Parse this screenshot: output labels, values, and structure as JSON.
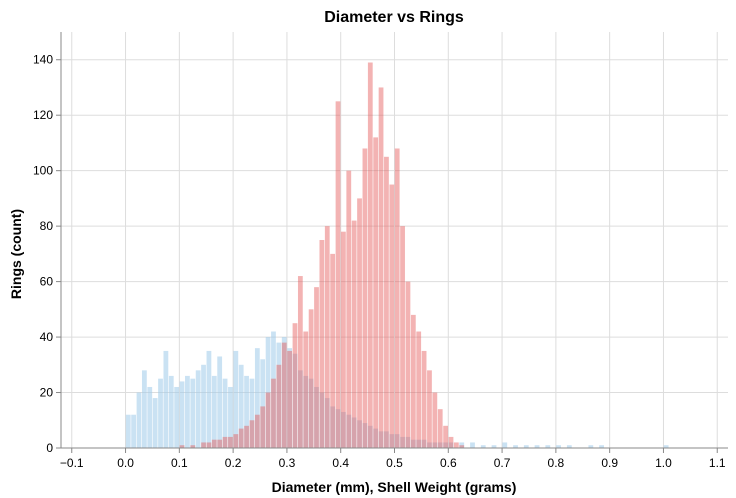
{
  "chart_data": {
    "type": "histogram",
    "title": "Diameter vs Rings",
    "xlabel": "Diameter (mm), Shell Weight (grams)",
    "ylabel": "Rings (count)",
    "xlim": [
      -0.12,
      1.12
    ],
    "ylim": [
      0,
      150
    ],
    "x_ticks": [
      "−0.1",
      "0.0",
      "0.1",
      "0.2",
      "0.3",
      "0.4",
      "0.5",
      "0.6",
      "0.7",
      "0.8",
      "0.9",
      "1.0",
      "1.1"
    ],
    "y_ticks": [
      "0",
      "20",
      "40",
      "60",
      "80",
      "100",
      "120",
      "140"
    ],
    "grid": true,
    "legend": "none",
    "series": [
      {
        "name": "",
        "color": "#9ecae9",
        "bin_width": 0.01,
        "bins": [
          [
            0.0,
            12
          ],
          [
            0.01,
            12
          ],
          [
            0.02,
            20
          ],
          [
            0.03,
            28
          ],
          [
            0.04,
            22
          ],
          [
            0.05,
            18
          ],
          [
            0.06,
            25
          ],
          [
            0.07,
            35
          ],
          [
            0.08,
            26
          ],
          [
            0.09,
            22
          ],
          [
            0.1,
            24
          ],
          [
            0.11,
            26
          ],
          [
            0.12,
            25
          ],
          [
            0.13,
            28
          ],
          [
            0.14,
            30
          ],
          [
            0.15,
            35
          ],
          [
            0.16,
            26
          ],
          [
            0.17,
            33
          ],
          [
            0.18,
            25
          ],
          [
            0.19,
            22
          ],
          [
            0.2,
            35
          ],
          [
            0.21,
            30
          ],
          [
            0.22,
            26
          ],
          [
            0.23,
            25
          ],
          [
            0.24,
            36
          ],
          [
            0.25,
            32
          ],
          [
            0.26,
            40
          ],
          [
            0.27,
            42
          ],
          [
            0.28,
            38
          ],
          [
            0.29,
            40
          ],
          [
            0.3,
            36
          ],
          [
            0.31,
            34
          ],
          [
            0.32,
            28
          ],
          [
            0.33,
            26
          ],
          [
            0.34,
            25
          ],
          [
            0.35,
            22
          ],
          [
            0.36,
            20
          ],
          [
            0.37,
            18
          ],
          [
            0.38,
            15
          ],
          [
            0.39,
            14
          ],
          [
            0.4,
            13
          ],
          [
            0.41,
            12
          ],
          [
            0.42,
            11
          ],
          [
            0.43,
            10
          ],
          [
            0.44,
            9
          ],
          [
            0.45,
            8
          ],
          [
            0.46,
            7
          ],
          [
            0.47,
            6
          ],
          [
            0.48,
            6
          ],
          [
            0.49,
            5
          ],
          [
            0.5,
            5
          ],
          [
            0.51,
            4
          ],
          [
            0.52,
            4
          ],
          [
            0.53,
            3
          ],
          [
            0.54,
            3
          ],
          [
            0.55,
            3
          ],
          [
            0.56,
            2
          ],
          [
            0.57,
            2
          ],
          [
            0.58,
            2
          ],
          [
            0.59,
            2
          ],
          [
            0.6,
            2
          ],
          [
            0.62,
            2
          ],
          [
            0.64,
            2
          ],
          [
            0.66,
            1
          ],
          [
            0.68,
            1
          ],
          [
            0.7,
            2
          ],
          [
            0.72,
            1
          ],
          [
            0.74,
            1
          ],
          [
            0.76,
            1
          ],
          [
            0.78,
            1
          ],
          [
            0.8,
            1
          ],
          [
            0.82,
            1
          ],
          [
            0.86,
            1
          ],
          [
            0.88,
            1
          ],
          [
            1.0,
            1
          ]
        ]
      },
      {
        "name": "",
        "color": "#e45756",
        "bin_width": 0.01,
        "bins": [
          [
            0.1,
            1
          ],
          [
            0.12,
            1
          ],
          [
            0.14,
            2
          ],
          [
            0.15,
            2
          ],
          [
            0.16,
            3
          ],
          [
            0.17,
            3
          ],
          [
            0.18,
            4
          ],
          [
            0.19,
            4
          ],
          [
            0.2,
            5
          ],
          [
            0.21,
            7
          ],
          [
            0.22,
            8
          ],
          [
            0.23,
            10
          ],
          [
            0.24,
            12
          ],
          [
            0.25,
            15
          ],
          [
            0.26,
            20
          ],
          [
            0.27,
            25
          ],
          [
            0.28,
            30
          ],
          [
            0.29,
            38
          ],
          [
            0.3,
            35
          ],
          [
            0.31,
            45
          ],
          [
            0.32,
            62
          ],
          [
            0.33,
            42
          ],
          [
            0.34,
            50
          ],
          [
            0.35,
            58
          ],
          [
            0.36,
            75
          ],
          [
            0.37,
            80
          ],
          [
            0.38,
            70
          ],
          [
            0.39,
            125
          ],
          [
            0.4,
            78
          ],
          [
            0.41,
            100
          ],
          [
            0.42,
            82
          ],
          [
            0.43,
            90
          ],
          [
            0.44,
            108
          ],
          [
            0.45,
            139
          ],
          [
            0.46,
            112
          ],
          [
            0.47,
            130
          ],
          [
            0.48,
            105
          ],
          [
            0.49,
            95
          ],
          [
            0.5,
            108
          ],
          [
            0.51,
            80
          ],
          [
            0.52,
            60
          ],
          [
            0.53,
            48
          ],
          [
            0.54,
            42
          ],
          [
            0.55,
            35
          ],
          [
            0.56,
            28
          ],
          [
            0.57,
            20
          ],
          [
            0.58,
            14
          ],
          [
            0.59,
            8
          ],
          [
            0.6,
            4
          ],
          [
            0.61,
            2
          ],
          [
            0.62,
            1
          ]
        ]
      }
    ]
  }
}
